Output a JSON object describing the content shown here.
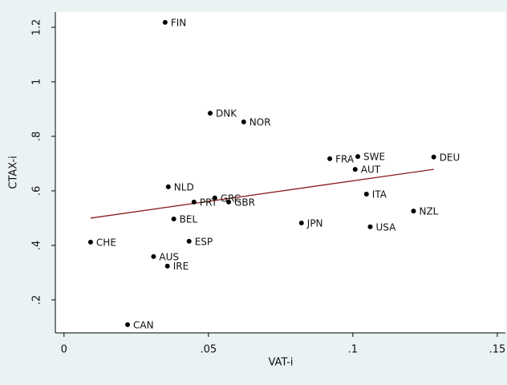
{
  "chart_data": {
    "type": "scatter",
    "x_label": "VAT-i",
    "y_label": "CTAX-i",
    "xlim": [
      -0.003,
      0.1528
    ],
    "ylim": [
      0.079,
      1.256
    ],
    "xticks": [
      0,
      {
        "value": 0.05,
        "label": ".05"
      },
      {
        "value": 0.1,
        "label": ".1"
      },
      {
        "value": 0.15,
        "label": ".15"
      }
    ],
    "yticks": [
      {
        "value": 0.2,
        "label": ".2"
      },
      {
        "value": 0.4,
        "label": ".4"
      },
      {
        "value": 0.6,
        "label": ".6"
      },
      {
        "value": 0.8,
        "label": ".8"
      },
      1,
      1.2
    ],
    "point_color": "#000000",
    "points": {
      "labels": [
        "FIN",
        "DNK",
        "NOR",
        "FRA",
        "SWE",
        "DEU",
        "AUT",
        "NLD",
        "GRC",
        "PRT",
        "GBR",
        "ITA",
        "BEL",
        "JPN",
        "NZL",
        "USA",
        "CHE",
        "ESP",
        "AUS",
        "IRE",
        "CAN"
      ],
      "x": [
        0.035,
        0.0506,
        0.0622,
        0.092,
        0.1017,
        0.128,
        0.1008,
        0.0361,
        0.0522,
        0.045,
        0.057,
        0.1047,
        0.038,
        0.0822,
        0.121,
        0.106,
        0.0092,
        0.0433,
        0.031,
        0.0358,
        0.022
      ],
      "y": [
        1.218,
        0.885,
        0.853,
        0.718,
        0.726,
        0.724,
        0.679,
        0.615,
        0.574,
        0.559,
        0.559,
        0.588,
        0.497,
        0.482,
        0.526,
        0.468,
        0.412,
        0.415,
        0.359,
        0.324,
        0.109
      ]
    },
    "fit_line": {
      "color": "#8b1a1a",
      "x": [
        0.0092,
        0.128
      ],
      "y": [
        0.5,
        0.679
      ]
    }
  }
}
